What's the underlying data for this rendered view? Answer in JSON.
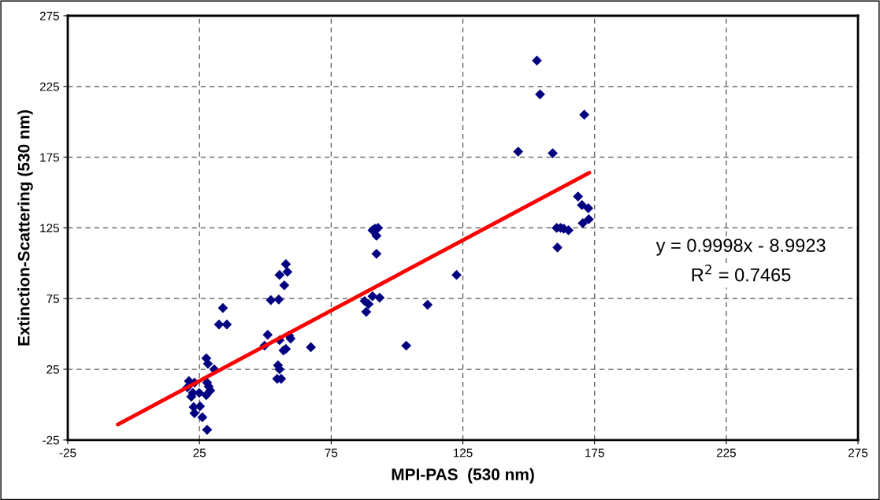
{
  "chart_data": {
    "type": "scatter",
    "xlabel": "MPI-PAS  (530 nm)",
    "ylabel": "Extinction-Scattering (530 nm)",
    "xlim": [
      -25,
      275
    ],
    "xticks": [
      -25,
      25,
      75,
      125,
      175,
      225,
      275
    ],
    "ylim": [
      -25,
      275
    ],
    "yticks": [
      -25,
      25,
      75,
      125,
      175,
      225,
      275
    ],
    "grid": true,
    "series": [
      {
        "marker": "diamond",
        "color": "#000080",
        "x": [
          33.9,
          32.4,
          35.4,
          27.6,
          28.2,
          30.6,
          21.0,
          23.1,
          27.9,
          28.5,
          20.4,
          29.1,
          22.5,
          21.9,
          24.9,
          27.6,
          22.8,
          25.2,
          23.1,
          26.1,
          27.9,
          57.8,
          55.4,
          58.4,
          57.2,
          52.1,
          55.1,
          50.9,
          49.7,
          55.4,
          59.0,
          59.6,
          56.9,
          57.8,
          67.3,
          54.8,
          55.4,
          54.5,
          56.0,
          87.7,
          89.2,
          88.3,
          90.7,
          93.4,
          90.7,
          92.8,
          91.6,
          92.2,
          92.2,
          111.6,
          103.5,
          122.6,
          153.1,
          154.3,
          171.1,
          146.0,
          159.1,
          168.7,
          170.2,
          172.6,
          172.8,
          170.5,
          160.6,
          162.1,
          163.3,
          165.1,
          160.9
        ],
        "values": [
          68.3,
          56.7,
          56.7,
          32.8,
          28.9,
          25.0,
          16.7,
          15.6,
          15.6,
          12.8,
          12.2,
          10.0,
          8.3,
          5.6,
          8.3,
          6.7,
          -1.7,
          -1.1,
          -6.1,
          -8.9,
          -17.8,
          99.4,
          91.7,
          93.9,
          84.4,
          73.9,
          74.4,
          49.4,
          41.7,
          45.6,
          48.9,
          46.7,
          38.3,
          39.4,
          40.6,
          27.8,
          25.0,
          18.3,
          18.3,
          73.3,
          71.1,
          65.6,
          76.7,
          75.6,
          123.3,
          125.0,
          124.4,
          119.4,
          106.7,
          70.6,
          41.7,
          91.7,
          243.3,
          219.4,
          205.0,
          178.9,
          177.8,
          147.2,
          141.1,
          138.9,
          131.1,
          128.3,
          125.0,
          125.0,
          124.4,
          123.3,
          111.1
        ]
      },
      {
        "type": "line",
        "marker": "none",
        "color": "#ff0000",
        "x": [
          -6,
          173
        ],
        "values": [
          -14,
          164
        ]
      }
    ],
    "annotations": [
      "y = 0.9998x - 8.9923",
      "R$^{2}$ = 0.7465"
    ]
  }
}
